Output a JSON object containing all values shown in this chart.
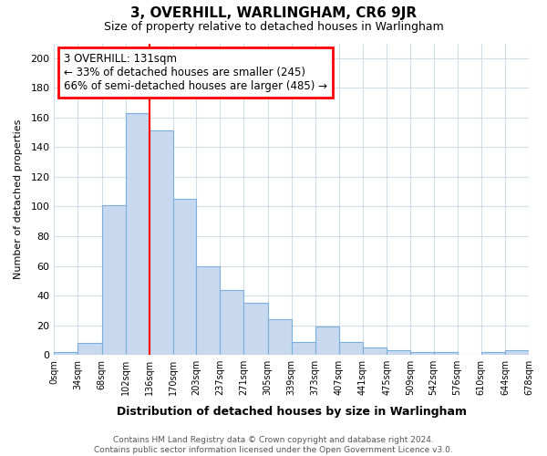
{
  "title": "3, OVERHILL, WARLINGHAM, CR6 9JR",
  "subtitle": "Size of property relative to detached houses in Warlingham",
  "xlabel": "Distribution of detached houses by size in Warlingham",
  "ylabel": "Number of detached properties",
  "bin_edges": [
    0,
    34,
    68,
    102,
    136,
    170,
    203,
    237,
    271,
    305,
    339,
    373,
    407,
    441,
    475,
    509,
    542,
    576,
    610,
    644,
    678
  ],
  "bar_heights": [
    2,
    8,
    101,
    163,
    151,
    105,
    60,
    44,
    35,
    24,
    9,
    19,
    9,
    5,
    3,
    2,
    2,
    0,
    2,
    3
  ],
  "bar_color": "#c8d9ef",
  "bar_edge_color": "#7aaedc",
  "red_line_x": 136,
  "annotation_text": "3 OVERHILL: 131sqm\n← 33% of detached houses are smaller (245)\n66% of semi-detached houses are larger (485) →",
  "annotation_box_color": "white",
  "annotation_box_edge_color": "red",
  "ylim": [
    0,
    210
  ],
  "yticks": [
    0,
    20,
    40,
    60,
    80,
    100,
    120,
    140,
    160,
    180,
    200
  ],
  "tick_labels": [
    "0sqm",
    "34sqm",
    "68sqm",
    "102sqm",
    "136sqm",
    "170sqm",
    "203sqm",
    "237sqm",
    "271sqm",
    "305sqm",
    "339sqm",
    "373sqm",
    "407sqm",
    "441sqm",
    "475sqm",
    "509sqm",
    "542sqm",
    "576sqm",
    "610sqm",
    "644sqm",
    "678sqm"
  ],
  "footer_line1": "Contains HM Land Registry data © Crown copyright and database right 2024.",
  "footer_line2": "Contains public sector information licensed under the Open Government Licence v3.0.",
  "background_color": "#ffffff",
  "grid_color": "#d0dce8"
}
